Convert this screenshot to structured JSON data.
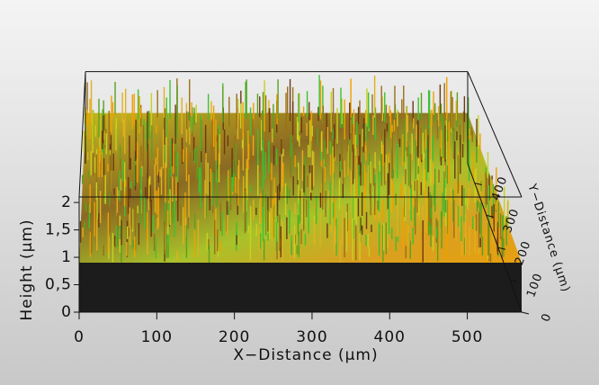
{
  "chart_data": {
    "type": "surface3d",
    "xlabel": "X−Distance (µm)",
    "ylabel": "Y−Distance (µm)",
    "zlabel": "Height (µm)",
    "xlim": [
      0,
      570
    ],
    "xticks": [
      0,
      100,
      200,
      300,
      400,
      500
    ],
    "ylim": [
      0,
      460
    ],
    "yticks": [
      0,
      100,
      200,
      300,
      400
    ],
    "zlim": [
      0,
      2.1
    ],
    "zticks": [
      0,
      {
        "value": 0.5,
        "label": "0,5"
      },
      1,
      {
        "value": 1.5,
        "label": "1,5"
      },
      2
    ]
  }
}
